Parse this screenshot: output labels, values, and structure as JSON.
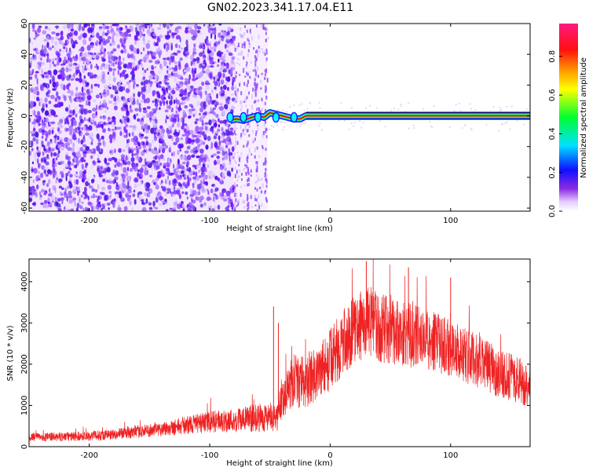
{
  "title": "GN02.2023.341.17.04.E11",
  "colors": {
    "snr_line": "#ee2222",
    "spectrogram_background_low": "#f2e6ff",
    "noise_dots": "#7a1cff",
    "band_core": "#ee1111"
  },
  "chart_data": [
    {
      "type": "heatmap",
      "name": "spectrogram",
      "xlabel": "Height of straight line (km)",
      "ylabel": "Frequency (Hz)",
      "xlim": [
        -250,
        166
      ],
      "ylim": [
        -62,
        60
      ],
      "x_ticks": [
        -200,
        -100,
        0,
        100
      ],
      "x_tick_labels": [
        "-200",
        "-100",
        "0",
        "100"
      ],
      "y_ticks": [
        60,
        40,
        20,
        0,
        -20,
        -40,
        -60
      ],
      "y_tick_labels": [
        "60",
        "40",
        "20",
        "0",
        "-20",
        "-40",
        "-60"
      ],
      "grid": false,
      "colorbar": {
        "label": "Normalized spectral amplitude",
        "range": [
          0,
          0.97
        ],
        "ticks": [
          0.0,
          0.2,
          0.4,
          0.6,
          0.8
        ],
        "tick_labels": [
          "0.0",
          "0.2",
          "0.4",
          "0.6",
          "0.8"
        ],
        "colormap": "rainbow (white-purple-blue-cyan-green-yellow-orange-red-magenta)"
      },
      "description_of_content": {
        "noise_region_x": [
          -250,
          -80
        ],
        "noise_fade_x": [
          -80,
          -52
        ],
        "carrier_start_x": -83,
        "carrier_frequency_hz": 0,
        "carrier_wobble_points": [
          {
            "x": -83,
            "y": -3
          },
          {
            "x": -78,
            "y": -2
          },
          {
            "x": -72,
            "y": -3
          },
          {
            "x": -65,
            "y": -1
          },
          {
            "x": -60,
            "y": 0
          },
          {
            "x": -55,
            "y": -1
          },
          {
            "x": -50,
            "y": 2
          },
          {
            "x": -45,
            "y": 1
          },
          {
            "x": -40,
            "y": 0
          },
          {
            "x": -35,
            "y": -1
          },
          {
            "x": -30,
            "y": -2
          },
          {
            "x": -25,
            "y": -2
          },
          {
            "x": -20,
            "y": 0
          },
          {
            "x": -10,
            "y": 0
          },
          {
            "x": 0,
            "y": 0
          },
          {
            "x": 166,
            "y": 0
          }
        ]
      }
    },
    {
      "type": "line",
      "name": "snr",
      "xlabel": "Height of straight line (km)",
      "ylabel": "SNR (10 * v/v)",
      "xlim": [
        -250,
        166
      ],
      "ylim": [
        0,
        4550
      ],
      "x_ticks": [
        -200,
        -100,
        0,
        100
      ],
      "x_tick_labels": [
        "-200",
        "-100",
        "0",
        "100"
      ],
      "y_ticks": [
        0,
        1000,
        2000,
        3000,
        4000
      ],
      "y_tick_labels": [
        "0",
        "1000",
        "2000",
        "3000",
        "4000"
      ],
      "grid": false,
      "envelope": {
        "x": [
          -250,
          -220,
          -200,
          -180,
          -160,
          -140,
          -120,
          -100,
          -80,
          -60,
          -50,
          -45,
          -40,
          -30,
          -20,
          -10,
          0,
          10,
          20,
          30,
          40,
          60,
          80,
          100,
          120,
          140,
          166
        ],
        "mean": [
          230,
          240,
          260,
          300,
          360,
          430,
          520,
          600,
          640,
          700,
          720,
          600,
          1200,
          1500,
          1600,
          1800,
          2100,
          2500,
          2800,
          3050,
          2900,
          2750,
          2600,
          2400,
          2100,
          1800,
          1500
        ],
        "spread": [
          100,
          110,
          120,
          130,
          150,
          180,
          220,
          260,
          300,
          340,
          360,
          360,
          500,
          600,
          650,
          700,
          750,
          800,
          850,
          850,
          850,
          800,
          750,
          700,
          650,
          600,
          550
        ]
      },
      "notable_spikes": [
        {
          "x": -47,
          "y": 3400
        },
        {
          "x": -43,
          "y": 3000
        },
        {
          "x": 30,
          "y": 4500
        },
        {
          "x": 65,
          "y": 4350
        },
        {
          "x": 100,
          "y": 4100
        }
      ]
    }
  ]
}
